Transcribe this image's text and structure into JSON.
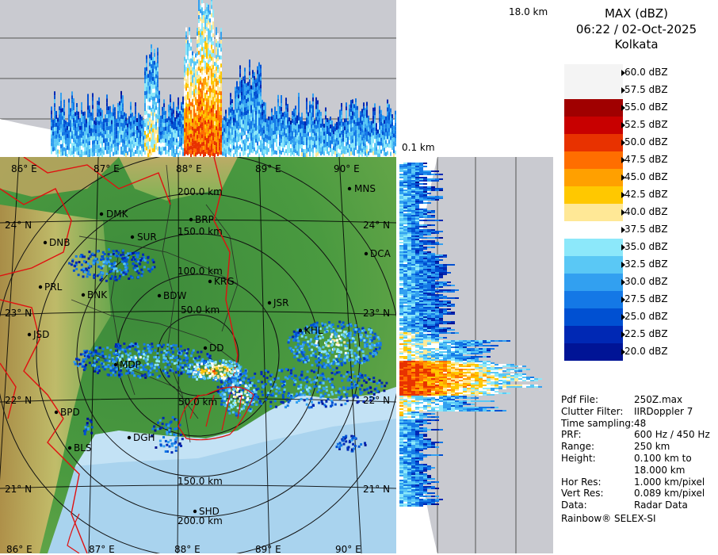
{
  "header": {
    "title": "MAX (dBZ)",
    "datetime": "06:22 / 02-Oct-2025",
    "station": "Kolkata"
  },
  "section_labels": {
    "top_height": "18.0 km",
    "base_height": "0.1 km"
  },
  "legend": {
    "levels": [
      {
        "label": "60.0 dBZ",
        "color": "#f4f4f4"
      },
      {
        "label": "57.5 dBZ",
        "color": "#f4f4f4"
      },
      {
        "label": "55.0 dBZ",
        "color": "#a00000"
      },
      {
        "label": "52.5 dBZ",
        "color": "#c80000"
      },
      {
        "label": "50.0 dBZ",
        "color": "#e83200"
      },
      {
        "label": "47.5 dBZ",
        "color": "#ff6e00"
      },
      {
        "label": "45.0 dBZ",
        "color": "#ffa000"
      },
      {
        "label": "42.5 dBZ",
        "color": "#ffc800"
      },
      {
        "label": "40.0 dBZ",
        "color": "#ffe896"
      },
      {
        "label": "37.5 dBZ",
        "color": "#ffffff"
      },
      {
        "label": "35.0 dBZ",
        "color": "#8ce8fa"
      },
      {
        "label": "32.5 dBZ",
        "color": "#5ac8f5"
      },
      {
        "label": "30.0 dBZ",
        "color": "#32a0f0"
      },
      {
        "label": "27.5 dBZ",
        "color": "#1478e6"
      },
      {
        "label": "25.0 dBZ",
        "color": "#0050d2"
      },
      {
        "label": "22.5 dBZ",
        "color": "#0028b4"
      },
      {
        "label": "20.0 dBZ",
        "color": "#001496"
      }
    ]
  },
  "info": [
    {
      "key": "Pdf File:",
      "value": "250Z.max"
    },
    {
      "key": "Clutter Filter:",
      "value": "IIRDoppler 7"
    },
    {
      "key": "Time sampling:",
      "value": "48"
    },
    {
      "key": "PRF:",
      "value": "600 Hz / 450 Hz"
    },
    {
      "key": "Range:",
      "value": "250 km"
    },
    {
      "key": "Height:",
      "value": "0.100 km to"
    },
    {
      "key": "",
      "value": "18.000 km"
    },
    {
      "key": "Hor Res:",
      "value": "1.000 km/pixel"
    },
    {
      "key": "Vert Res:",
      "value": "0.089 km/pixel"
    },
    {
      "key": "Data:",
      "value": "Radar Data"
    }
  ],
  "footer": "Rainbow® SELEX-SI",
  "map": {
    "lon_labels": [
      "86° E",
      "87° E",
      "88° E",
      "89° E",
      "90° E"
    ],
    "lat_labels": [
      "24° N",
      "23° N",
      "22° N",
      "21° N"
    ],
    "range_rings": [
      "50.0 km",
      "100.0 km",
      "150.0 km",
      "200.0 km"
    ],
    "cities": [
      {
        "name": "MNS"
      },
      {
        "name": "DMK"
      },
      {
        "name": "BRP"
      },
      {
        "name": "DNB"
      },
      {
        "name": "SUR"
      },
      {
        "name": "DCA"
      },
      {
        "name": "KRG"
      },
      {
        "name": "PRL"
      },
      {
        "name": "BNK"
      },
      {
        "name": "BDW"
      },
      {
        "name": "JSR"
      },
      {
        "name": "JSD"
      },
      {
        "name": "KHL"
      },
      {
        "name": "DD"
      },
      {
        "name": "MDP"
      },
      {
        "name": "BPD"
      },
      {
        "name": "DGH"
      },
      {
        "name": "BLS"
      },
      {
        "name": "SHD"
      }
    ]
  },
  "colors": {
    "panel_bg": "#c9cad0",
    "sea": "#a9d3ee",
    "land_green": "#3f8a3c",
    "border_red": "#e01010"
  }
}
